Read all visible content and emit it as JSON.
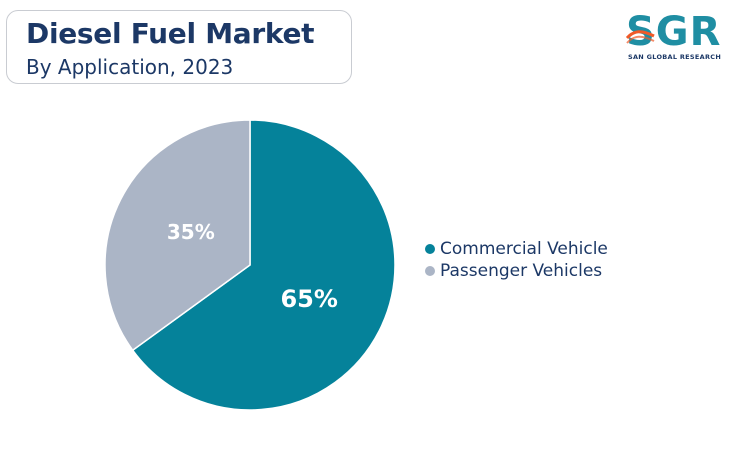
{
  "header": {
    "title": "Diesel Fuel Market",
    "subtitle": "By Application, 2023"
  },
  "logo": {
    "mark": "SGR",
    "tagline": "SAN GLOBAL RESEARCH",
    "color": "#1f8ea3",
    "accent": "#f05a28"
  },
  "chart_data": {
    "type": "pie",
    "title": "Diesel Fuel Market",
    "subtitle": "By Application, 2023",
    "categories": [
      "Commercial Vehicle",
      "Passenger Vehicles"
    ],
    "values": [
      65,
      35
    ],
    "labels": [
      "65%",
      "35%"
    ],
    "colors": [
      "#05829a",
      "#abb5c6"
    ],
    "legend_position": "right",
    "start": "12 o'clock, clockwise"
  }
}
